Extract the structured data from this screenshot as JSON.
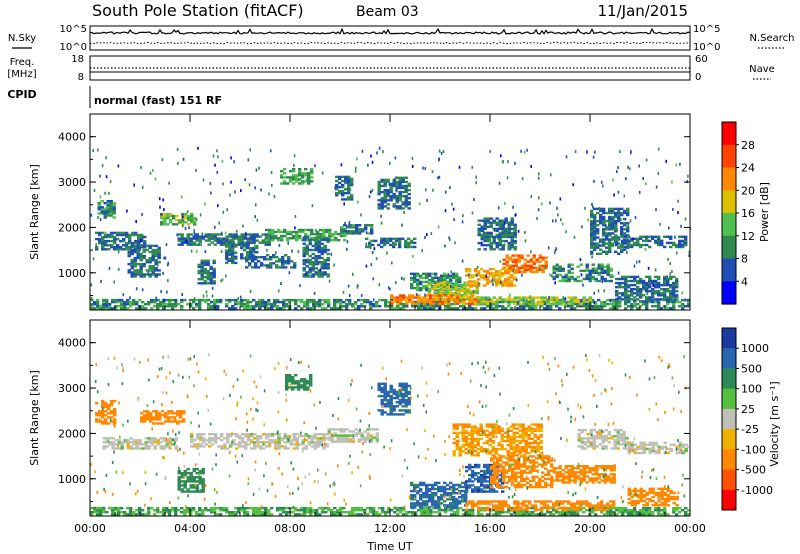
{
  "header": {
    "station": "South Pole Station (fitACF)",
    "beam": "Beam 03",
    "date": "11/Jan/2015"
  },
  "noise_panel": {
    "left_label": "N.Sky",
    "right_label": "N.Search",
    "left_ticks": [
      "10^5",
      "10^0"
    ],
    "right_ticks": [
      "10^5",
      "10^0"
    ]
  },
  "freq_panel": {
    "left_label_1": "Freq.",
    "left_label_2": "[MHz]",
    "left_ticks": [
      "18",
      "8"
    ],
    "right_label": "Nave",
    "right_ticks": [
      "60",
      "0"
    ],
    "cpid_label": "CPID",
    "mode_text": "normal (fast) 151 RF"
  },
  "chart_data": [
    {
      "type": "heatmap",
      "title": "",
      "ylabel": "Slant Range [km]",
      "xlabel": "",
      "ylim": [
        180,
        4500
      ],
      "yticks": [
        "1000",
        "2000",
        "3000",
        "4000"
      ],
      "xticks": [
        "00:00",
        "04:00",
        "08:00",
        "12:00",
        "16:00",
        "20:00",
        "00:00"
      ],
      "colorbar": {
        "label": "Power [dB]",
        "ticks": [
          "4",
          "8",
          "12",
          "16",
          "20",
          "24",
          "28"
        ],
        "colors": [
          "#0000ff",
          "#1f4fb4",
          "#2f8a4f",
          "#4fbf4f",
          "#ddc000",
          "#ff8800",
          "#ff4400",
          "#ff0000"
        ]
      },
      "bands": [
        {
          "t": [
            0,
            24
          ],
          "r": [
            200,
            400
          ],
          "v": 10
        },
        {
          "t": [
            0.2,
            2.2
          ],
          "r": [
            1500,
            1900
          ],
          "v": 8
        },
        {
          "t": [
            0.3,
            1.0
          ],
          "r": [
            2200,
            2600
          ],
          "v": 10
        },
        {
          "t": [
            1.5,
            2.8
          ],
          "r": [
            900,
            1600
          ],
          "v": 8
        },
        {
          "t": [
            2.8,
            4.2
          ],
          "r": [
            2050,
            2300
          ],
          "v": 14
        },
        {
          "t": [
            3.5,
            7.2
          ],
          "r": [
            1600,
            1850
          ],
          "v": 8
        },
        {
          "t": [
            4.3,
            5.0
          ],
          "r": [
            750,
            1250
          ],
          "v": 8
        },
        {
          "t": [
            5.4,
            5.8
          ],
          "r": [
            1200,
            1700
          ],
          "v": 8
        },
        {
          "t": [
            6.0,
            6.7
          ],
          "r": [
            1300,
            1600
          ],
          "v": 8
        },
        {
          "t": [
            6.2,
            8.2
          ],
          "r": [
            1100,
            1400
          ],
          "v": 8
        },
        {
          "t": [
            7.0,
            10.2
          ],
          "r": [
            1700,
            1950
          ],
          "v": 12
        },
        {
          "t": [
            8.5,
            9.5
          ],
          "r": [
            900,
            1800
          ],
          "v": 8
        },
        {
          "t": [
            10.0,
            11.3
          ],
          "r": [
            1850,
            2050
          ],
          "v": 10
        },
        {
          "t": [
            11.0,
            13.0
          ],
          "r": [
            1550,
            1750
          ],
          "v": 8
        },
        {
          "t": [
            11.5,
            12.8
          ],
          "r": [
            2400,
            3100
          ],
          "v": 8
        },
        {
          "t": [
            7.6,
            8.8
          ],
          "r": [
            2950,
            3300
          ],
          "v": 12
        },
        {
          "t": [
            9.8,
            10.4
          ],
          "r": [
            2600,
            3100
          ],
          "v": 8
        },
        {
          "t": [
            12.8,
            14.8
          ],
          "r": [
            600,
            1000
          ],
          "v": 10
        },
        {
          "t": [
            13.5,
            15.5
          ],
          "r": [
            400,
            800
          ],
          "v": 16
        },
        {
          "t": [
            15.0,
            17.0
          ],
          "r": [
            700,
            1100
          ],
          "v": 20
        },
        {
          "t": [
            16.5,
            18.2
          ],
          "r": [
            1000,
            1400
          ],
          "v": 24
        },
        {
          "t": [
            15.5,
            17.0
          ],
          "r": [
            1500,
            2200
          ],
          "v": 8
        },
        {
          "t": [
            18.5,
            20.8
          ],
          "r": [
            800,
            1200
          ],
          "v": 10
        },
        {
          "t": [
            20.0,
            21.5
          ],
          "r": [
            1400,
            2400
          ],
          "v": 8
        },
        {
          "t": [
            21.0,
            23.8
          ],
          "r": [
            1550,
            1800
          ],
          "v": 8
        },
        {
          "t": [
            21.0,
            23.5
          ],
          "r": [
            350,
            900
          ],
          "v": 8
        },
        {
          "t": [
            12.0,
            15.5
          ],
          "r": [
            300,
            500
          ],
          "v": 22
        },
        {
          "t": [
            15.5,
            20.0
          ],
          "r": [
            300,
            450
          ],
          "v": 16
        }
      ]
    },
    {
      "type": "heatmap",
      "title": "",
      "ylabel": "Slant Range [km]",
      "xlabel": "Time UT",
      "ylim": [
        180,
        4500
      ],
      "yticks": [
        "1000",
        "2000",
        "3000",
        "4000"
      ],
      "xticks": [
        "00:00",
        "04:00",
        "08:00",
        "12:00",
        "16:00",
        "20:00",
        "00:00"
      ],
      "colorbar": {
        "label": "Velocity [m s⁻¹]",
        "ticks": [
          "1000",
          "500",
          "100",
          "25",
          "-25",
          "-100",
          "-500",
          "-1000"
        ],
        "colors": [
          "#1a3aa0",
          "#2a66b0",
          "#2e8a55",
          "#55c040",
          "#c0c0b8",
          "#f0b000",
          "#ff8800",
          "#ff5000",
          "#ff0000"
        ]
      },
      "bands": [
        {
          "t": [
            0,
            24
          ],
          "r": [
            200,
            350
          ],
          "v": 100
        },
        {
          "t": [
            0.2,
            1.0
          ],
          "r": [
            2200,
            2700
          ],
          "v": -300
        },
        {
          "t": [
            0.5,
            3.5
          ],
          "r": [
            1650,
            1900
          ],
          "v": 0
        },
        {
          "t": [
            2.0,
            3.8
          ],
          "r": [
            2200,
            2500
          ],
          "v": -300
        },
        {
          "t": [
            4.0,
            7.5
          ],
          "r": [
            1650,
            2000
          ],
          "v": 0
        },
        {
          "t": [
            3.5,
            4.5
          ],
          "r": [
            700,
            1200
          ],
          "v": 300
        },
        {
          "t": [
            7.5,
            9.5
          ],
          "r": [
            1650,
            2000
          ],
          "v": 0
        },
        {
          "t": [
            9.5,
            11.5
          ],
          "r": [
            1800,
            2100
          ],
          "v": 0
        },
        {
          "t": [
            7.8,
            8.8
          ],
          "r": [
            2950,
            3300
          ],
          "v": 300
        },
        {
          "t": [
            11.5,
            12.8
          ],
          "r": [
            2400,
            3100
          ],
          "v": 700
        },
        {
          "t": [
            12.8,
            15.0
          ],
          "r": [
            350,
            900
          ],
          "v": 700
        },
        {
          "t": [
            15.0,
            16.5
          ],
          "r": [
            700,
            1300
          ],
          "v": 800
        },
        {
          "t": [
            16.0,
            18.5
          ],
          "r": [
            800,
            1500
          ],
          "v": -300
        },
        {
          "t": [
            14.5,
            18.0
          ],
          "r": [
            1500,
            2200
          ],
          "v": -100
        },
        {
          "t": [
            18.5,
            21.0
          ],
          "r": [
            900,
            1300
          ],
          "v": -300
        },
        {
          "t": [
            19.5,
            21.5
          ],
          "r": [
            1650,
            2100
          ],
          "v": 0
        },
        {
          "t": [
            21.5,
            23.8
          ],
          "r": [
            1550,
            1800
          ],
          "v": 0
        },
        {
          "t": [
            21.5,
            23.5
          ],
          "r": [
            400,
            800
          ],
          "v": -300
        },
        {
          "t": [
            15.0,
            21.0
          ],
          "r": [
            300,
            500
          ],
          "v": -300
        }
      ]
    }
  ]
}
